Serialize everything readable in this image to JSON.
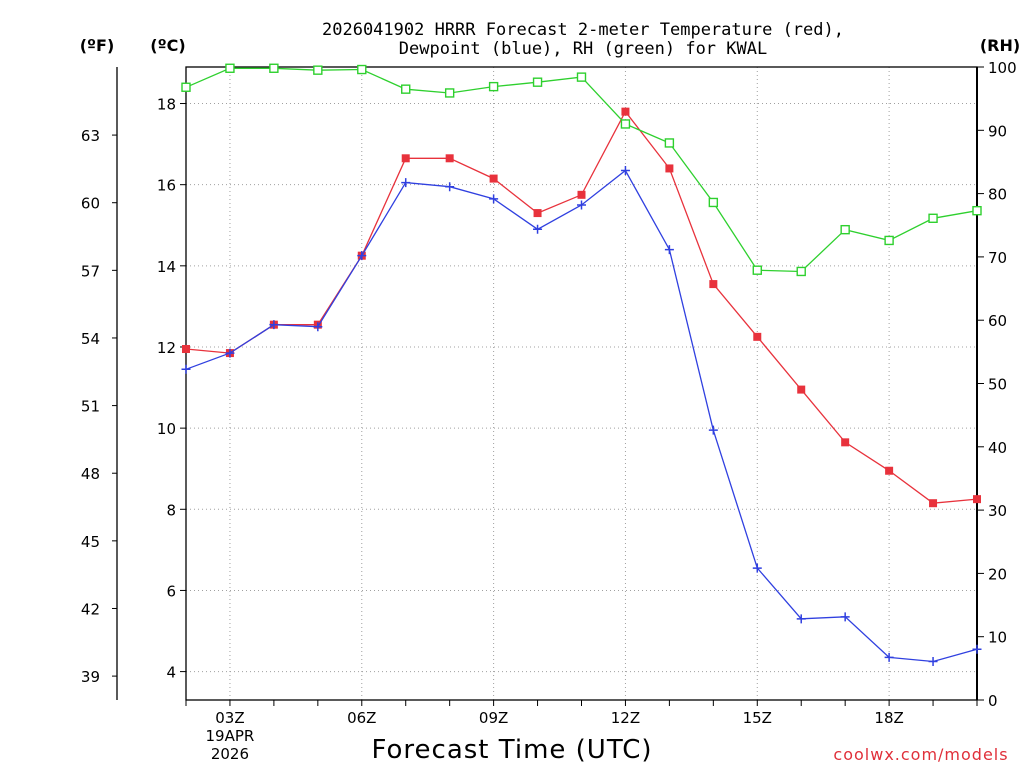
{
  "chart_data": {
    "type": "line",
    "title": [
      "2026041902 HRRR Forecast 2-meter Temperature (red),",
      "Dewpoint (blue), RH (green) for KWAL"
    ],
    "xlabel": "Forecast Time (UTC)",
    "credit": "coolwx.com/models",
    "x_hours": [
      2,
      3,
      4,
      5,
      6,
      7,
      8,
      9,
      10,
      11,
      12,
      13,
      14,
      15,
      16,
      17,
      18,
      19,
      20
    ],
    "x_ticks": [
      {
        "hour": 3,
        "label": "03Z",
        "sub": [
          "19APR",
          "2026"
        ]
      },
      {
        "hour": 6,
        "label": "06Z"
      },
      {
        "hour": 9,
        "label": "09Z"
      },
      {
        "hour": 12,
        "label": "12Z"
      },
      {
        "hour": 15,
        "label": "15Z"
      },
      {
        "hour": 18,
        "label": "18Z"
      }
    ],
    "xlim": [
      2,
      20
    ],
    "y_left_c": {
      "label": "(ºC)",
      "lim": [
        3.3,
        18.9
      ],
      "ticks": [
        4,
        6,
        8,
        10,
        12,
        14,
        16,
        18
      ]
    },
    "y_left_f": {
      "label": "(ºF)",
      "ticks": [
        39,
        42,
        45,
        48,
        51,
        54,
        57,
        60,
        63
      ]
    },
    "y_right": {
      "label": "(RH)",
      "lim": [
        0,
        100
      ],
      "ticks": [
        0,
        10,
        20,
        30,
        40,
        50,
        60,
        70,
        80,
        90,
        100
      ]
    },
    "series": [
      {
        "name": "Temperature",
        "axis": "c",
        "color": "#e8323c",
        "marker": "filled-square",
        "values": [
          11.95,
          11.85,
          12.55,
          12.55,
          14.25,
          16.65,
          16.65,
          16.15,
          15.3,
          15.75,
          17.8,
          16.4,
          13.55,
          12.25,
          10.95,
          9.65,
          8.95,
          8.15,
          8.25
        ]
      },
      {
        "name": "Dewpoint",
        "axis": "c",
        "color": "#3040e0",
        "marker": "plus",
        "values": [
          11.45,
          11.85,
          12.55,
          12.5,
          14.25,
          16.05,
          15.95,
          15.65,
          14.9,
          15.5,
          16.35,
          14.4,
          9.95,
          6.55,
          5.3,
          5.35,
          4.35,
          4.25,
          4.55
        ]
      },
      {
        "name": "RH",
        "axis": "rh",
        "color": "#2ed02e",
        "marker": "open-square",
        "values": [
          96.8,
          99.8,
          99.8,
          99.5,
          99.6,
          96.5,
          95.9,
          96.9,
          97.6,
          98.4,
          91.0,
          88.0,
          78.6,
          67.9,
          67.7,
          74.3,
          72.6,
          76.1,
          77.3
        ]
      }
    ]
  }
}
